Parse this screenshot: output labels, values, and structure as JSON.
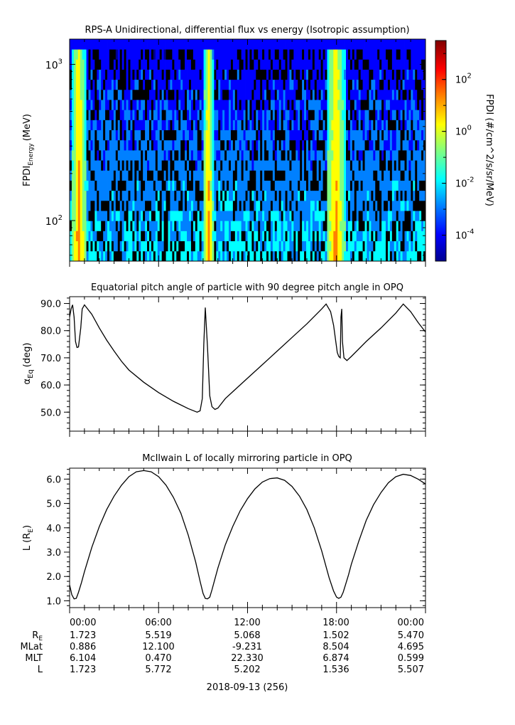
{
  "figure": {
    "date_label": "2018-09-13 (256)",
    "ephemeris": {
      "row_labels": [
        "R",
        "MLat",
        "MLT",
        "L"
      ],
      "r_subscript": "E",
      "columns": [
        {
          "time": "00:00",
          "values": [
            "1.723",
            "0.886",
            "6.104",
            "1.723"
          ]
        },
        {
          "time": "06:00",
          "values": [
            "5.519",
            "12.100",
            "0.470",
            "5.772"
          ]
        },
        {
          "time": "12:00",
          "values": [
            "5.068",
            "-9.231",
            "22.330",
            "5.202"
          ]
        },
        {
          "time": "18:00",
          "values": [
            "1.502",
            "8.504",
            "6.874",
            "1.536"
          ]
        },
        {
          "time": "00:00",
          "values": [
            "5.470",
            "4.695",
            "0.599",
            "5.507"
          ]
        }
      ]
    }
  },
  "chart_data": [
    {
      "type": "heatmap",
      "title": "RPS-A Unidirectional, differential flux vs energy (Isotropic assumption)",
      "ylabel": "FPDI",
      "ylabel_subscript": "Energy",
      "ylabel_unit": "(MeV)",
      "y_scale": "log",
      "ylim": [
        55,
        1450
      ],
      "yticks": [
        {
          "value": 100,
          "base": "10",
          "exp": "2"
        },
        {
          "value": 1000,
          "base": "10",
          "exp": "3"
        }
      ],
      "x_hours": [
        0,
        24
      ],
      "colorbar": {
        "label": "FPDI (#/cm^2/s/sr/MeV)",
        "scale": "log",
        "range_log10": [
          -5,
          3.5
        ],
        "ticks": [
          {
            "base": "10",
            "exp": "-4",
            "log": -4
          },
          {
            "base": "10",
            "exp": "-2",
            "log": -2
          },
          {
            "base": "10",
            "exp": "0",
            "log": 0
          },
          {
            "base": "10",
            "exp": "2",
            "log": 2
          }
        ],
        "colors": [
          "#00008f",
          "#0000ff",
          "#0080ff",
          "#00ffff",
          "#80ff80",
          "#ffff00",
          "#ff8000",
          "#ff0000",
          "#800000"
        ]
      },
      "enhancement_intervals_hours": [
        [
          0.1,
          1.15
        ],
        [
          9.0,
          9.7
        ],
        [
          17.3,
          18.6
        ]
      ]
    },
    {
      "type": "line",
      "title": "Equatorial pitch angle of particle with 90 degree pitch angle in OPQ",
      "ylabel": "α",
      "ylabel_subscript": "Eq",
      "ylabel_unit": "(deg)",
      "ylim": [
        43,
        92.5
      ],
      "yticks": [
        50,
        60,
        70,
        80,
        90
      ],
      "x_hours": [
        0,
        24
      ],
      "series": [
        {
          "x": [
            0,
            0.1,
            0.2,
            0.3,
            0.4,
            0.5,
            0.6,
            0.75,
            0.85,
            1.0,
            1.5,
            2.0,
            2.5,
            3.0,
            3.5,
            4.0,
            5.0,
            6.0,
            7.0,
            8.0,
            8.6,
            8.8,
            8.95,
            9.05,
            9.15,
            9.3,
            9.45,
            9.6,
            9.8,
            10.0,
            10.5,
            11.0,
            12.0,
            13.0,
            14.0,
            15.0,
            16.0,
            17.0,
            17.3,
            17.6,
            17.8,
            17.95,
            18.05,
            18.15,
            18.25,
            18.3,
            18.35,
            18.4,
            18.5,
            18.7,
            19.0,
            20.0,
            21.0,
            22.0,
            22.5,
            23.0,
            23.5,
            24.0
          ],
          "y": [
            85,
            88,
            89.5,
            85,
            76,
            73.8,
            74,
            81,
            88,
            89.5,
            86,
            81,
            76.5,
            72.5,
            68.7,
            65.5,
            61,
            57.2,
            54,
            51.3,
            50,
            50.5,
            55,
            75,
            88.5,
            74,
            56,
            52,
            51,
            51.5,
            55,
            57.5,
            62.5,
            67.5,
            72.5,
            77.5,
            82.5,
            88,
            89.8,
            87,
            82,
            76,
            72,
            70.5,
            70,
            85,
            88,
            76,
            70,
            69,
            70.5,
            76,
            81,
            86.5,
            89.8,
            87,
            83,
            79.5
          ]
        }
      ]
    },
    {
      "type": "line",
      "title": "McIlwain L of locally mirroring particle in OPQ",
      "ylabel": "L",
      "ylabel_unit_open": "(R",
      "ylabel_unit_sub": "E",
      "ylabel_unit_close": ")",
      "ylim": [
        0.72,
        6.45
      ],
      "yticks": [
        1.0,
        2.0,
        3.0,
        4.0,
        5.0,
        6.0
      ],
      "x_hours": [
        0,
        24
      ],
      "series": [
        {
          "x": [
            0,
            0.15,
            0.3,
            0.45,
            0.6,
            0.8,
            1.0,
            1.5,
            2.0,
            2.5,
            3.0,
            3.5,
            4.0,
            4.5,
            5.0,
            5.5,
            6.0,
            6.5,
            7.0,
            7.5,
            8.0,
            8.5,
            8.8,
            9.0,
            9.15,
            9.3,
            9.45,
            9.6,
            9.8,
            10.0,
            10.5,
            11.0,
            11.5,
            12.0,
            12.5,
            13.0,
            13.5,
            14.0,
            14.5,
            15.0,
            15.5,
            16.0,
            16.5,
            17.0,
            17.5,
            17.8,
            18.0,
            18.15,
            18.3,
            18.45,
            18.6,
            18.8,
            19.0,
            19.5,
            20.0,
            20.5,
            21.0,
            21.5,
            22.0,
            22.5,
            23.0,
            23.5,
            24.0
          ],
          "y": [
            1.65,
            1.25,
            1.08,
            1.1,
            1.35,
            1.75,
            2.2,
            3.2,
            4.05,
            4.75,
            5.3,
            5.75,
            6.1,
            6.3,
            6.35,
            6.3,
            6.1,
            5.75,
            5.25,
            4.6,
            3.7,
            2.6,
            1.8,
            1.3,
            1.1,
            1.08,
            1.15,
            1.45,
            1.9,
            2.35,
            3.3,
            4.05,
            4.7,
            5.2,
            5.6,
            5.88,
            6.02,
            6.05,
            5.95,
            5.7,
            5.3,
            4.75,
            4.0,
            3.05,
            1.95,
            1.4,
            1.15,
            1.1,
            1.15,
            1.35,
            1.65,
            2.05,
            2.5,
            3.45,
            4.3,
            4.95,
            5.45,
            5.85,
            6.1,
            6.2,
            6.15,
            6.0,
            5.8
          ]
        }
      ]
    }
  ]
}
